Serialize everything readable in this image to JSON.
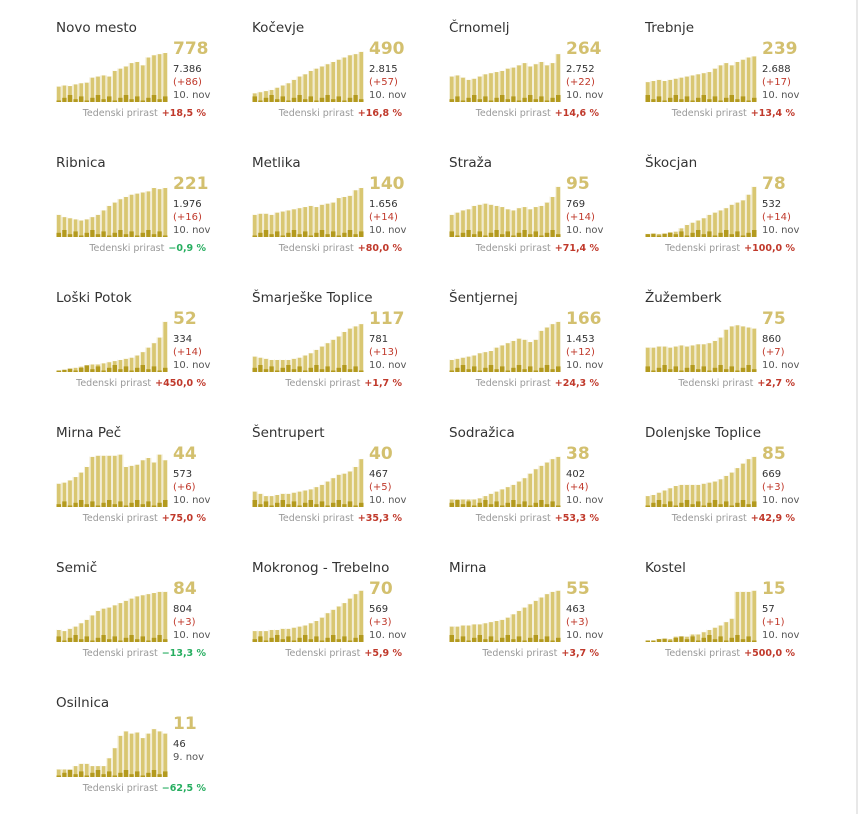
{
  "colors": {
    "bar": "#d9c772",
    "bar_edge": "#c9b452",
    "area": "#d3c06f",
    "new_bar": "#b39a1e",
    "positive": "#c0392b",
    "negative": "#27ae60"
  },
  "labels": {
    "growth_label": "Tedenski prirast"
  },
  "chart_data": [
    {
      "type": "bar",
      "title": "Novo mesto",
      "active": "778",
      "total": "7.386",
      "delta": "(+86)",
      "date": "10. nov",
      "growth": "+18,5 %",
      "growth_sign": "pos",
      "values": [
        28,
        30,
        29,
        32,
        34,
        35,
        44,
        46,
        48,
        46,
        56,
        60,
        64,
        70,
        72,
        66,
        80,
        84,
        86,
        88
      ]
    },
    {
      "type": "bar",
      "title": "Kočevje",
      "active": "490",
      "total": "2.815",
      "delta": "(+57)",
      "date": "10. nov",
      "growth": "+16,8 %",
      "growth_sign": "pos",
      "values": [
        16,
        18,
        20,
        22,
        26,
        30,
        34,
        40,
        46,
        50,
        56,
        60,
        64,
        68,
        72,
        76,
        80,
        84,
        86,
        90
      ]
    },
    {
      "type": "bar",
      "title": "Črnomelj",
      "active": "264",
      "total": "2.752",
      "delta": "(+22)",
      "date": "10. nov",
      "growth": "+14,6 %",
      "growth_sign": "pos",
      "values": [
        46,
        48,
        44,
        40,
        42,
        46,
        50,
        52,
        54,
        56,
        60,
        62,
        66,
        70,
        64,
        68,
        72,
        66,
        70,
        86
      ]
    },
    {
      "type": "bar",
      "title": "Trebnje",
      "active": "239",
      "total": "2.688",
      "delta": "(+17)",
      "date": "10. nov",
      "growth": "+13,4 %",
      "growth_sign": "pos",
      "values": [
        36,
        38,
        40,
        38,
        40,
        42,
        44,
        46,
        48,
        50,
        52,
        54,
        60,
        66,
        70,
        66,
        72,
        76,
        80,
        82
      ]
    },
    {
      "type": "bar",
      "title": "Ribnica",
      "active": "221",
      "total": "1.976",
      "delta": "(+16)",
      "date": "10. nov",
      "growth": "−0,9 %",
      "growth_sign": "neg",
      "values": [
        40,
        36,
        34,
        32,
        30,
        32,
        36,
        40,
        48,
        56,
        62,
        68,
        72,
        76,
        78,
        80,
        82,
        88,
        86,
        88
      ]
    },
    {
      "type": "bar",
      "title": "Metlika",
      "active": "140",
      "total": "1.656",
      "delta": "(+14)",
      "date": "10. nov",
      "growth": "+80,0 %",
      "growth_sign": "pos",
      "values": [
        40,
        42,
        42,
        40,
        44,
        46,
        48,
        50,
        52,
        54,
        56,
        54,
        58,
        60,
        62,
        70,
        72,
        74,
        84,
        88
      ]
    },
    {
      "type": "bar",
      "title": "Straža",
      "active": "95",
      "total": "769",
      "delta": "(+14)",
      "date": "10. nov",
      "growth": "+71,4 %",
      "growth_sign": "pos",
      "values": [
        40,
        44,
        48,
        50,
        56,
        58,
        60,
        58,
        56,
        54,
        50,
        48,
        52,
        54,
        50,
        54,
        56,
        62,
        72,
        90
      ]
    },
    {
      "type": "bar",
      "title": "Škocjan",
      "active": "78",
      "total": "532",
      "delta": "(+14)",
      "date": "10. nov",
      "growth": "+100,0 %",
      "growth_sign": "pos",
      "values": [
        6,
        6,
        6,
        6,
        8,
        10,
        16,
        22,
        26,
        30,
        34,
        40,
        44,
        48,
        52,
        58,
        62,
        66,
        76,
        90
      ]
    },
    {
      "type": "bar",
      "title": "Loški Potok",
      "active": "52",
      "total": "334",
      "delta": "(+14)",
      "date": "10. nov",
      "growth": "+450,0 %",
      "growth_sign": "pos",
      "values": [
        2,
        4,
        6,
        8,
        10,
        12,
        14,
        14,
        16,
        18,
        20,
        22,
        24,
        26,
        30,
        36,
        44,
        52,
        62,
        90
      ]
    },
    {
      "type": "bar",
      "title": "Šmarješke Toplice",
      "active": "117",
      "total": "781",
      "delta": "(+13)",
      "date": "10. nov",
      "growth": "+1,7 %",
      "growth_sign": "pos",
      "values": [
        28,
        26,
        24,
        22,
        22,
        22,
        22,
        24,
        26,
        30,
        34,
        40,
        46,
        52,
        58,
        64,
        72,
        78,
        82,
        86
      ]
    },
    {
      "type": "bar",
      "title": "Šentjernej",
      "active": "166",
      "total": "1.453",
      "delta": "(+12)",
      "date": "10. nov",
      "growth": "+24,3 %",
      "growth_sign": "pos",
      "values": [
        22,
        24,
        26,
        28,
        30,
        34,
        36,
        38,
        44,
        48,
        52,
        56,
        60,
        58,
        54,
        58,
        74,
        80,
        86,
        90
      ]
    },
    {
      "type": "bar",
      "title": "Žužemberk",
      "active": "75",
      "total": "860",
      "delta": "(+7)",
      "date": "10. nov",
      "growth": "+2,7 %",
      "growth_sign": "pos",
      "values": [
        44,
        44,
        46,
        46,
        44,
        46,
        48,
        46,
        48,
        50,
        50,
        52,
        56,
        62,
        76,
        82,
        84,
        82,
        80,
        78
      ]
    },
    {
      "type": "bar",
      "title": "Mirna Peč",
      "active": "44",
      "total": "573",
      "delta": "(+6)",
      "date": "10. nov",
      "growth": "+75,0 %",
      "growth_sign": "pos",
      "values": [
        42,
        44,
        48,
        54,
        62,
        72,
        90,
        92,
        92,
        92,
        92,
        94,
        72,
        74,
        76,
        84,
        88,
        80,
        94,
        84
      ]
    },
    {
      "type": "bar",
      "title": "Šentrupert",
      "active": "40",
      "total": "467",
      "delta": "(+5)",
      "date": "10. nov",
      "growth": "+35,3 %",
      "growth_sign": "pos",
      "values": [
        28,
        24,
        20,
        20,
        22,
        24,
        24,
        26,
        28,
        30,
        32,
        36,
        40,
        46,
        52,
        58,
        60,
        64,
        72,
        86
      ]
    },
    {
      "type": "bar",
      "title": "Sodražica",
      "active": "38",
      "total": "402",
      "delta": "(+4)",
      "date": "10. nov",
      "growth": "+53,3 %",
      "growth_sign": "pos",
      "values": [
        14,
        14,
        14,
        14,
        14,
        16,
        20,
        24,
        28,
        32,
        36,
        40,
        46,
        52,
        60,
        68,
        74,
        80,
        86,
        90
      ]
    },
    {
      "type": "bar",
      "title": "Dolenjske Toplice",
      "active": "85",
      "total": "669",
      "delta": "(+3)",
      "date": "10. nov",
      "growth": "+42,9 %",
      "growth_sign": "pos",
      "values": [
        20,
        22,
        26,
        30,
        34,
        38,
        40,
        40,
        40,
        40,
        42,
        44,
        46,
        50,
        56,
        62,
        70,
        78,
        86,
        90
      ]
    },
    {
      "type": "bar",
      "title": "Semič",
      "active": "84",
      "total": "804",
      "delta": "(+3)",
      "date": "10. nov",
      "growth": "−13,3 %",
      "growth_sign": "neg",
      "values": [
        22,
        20,
        24,
        28,
        34,
        40,
        48,
        56,
        60,
        62,
        66,
        70,
        74,
        78,
        82,
        84,
        86,
        88,
        90,
        90
      ]
    },
    {
      "type": "bar",
      "title": "Mokronog - Trebelno",
      "active": "70",
      "total": "569",
      "delta": "(+3)",
      "date": "10. nov",
      "growth": "+5,9 %",
      "growth_sign": "pos",
      "values": [
        20,
        20,
        20,
        22,
        22,
        24,
        24,
        26,
        28,
        30,
        34,
        38,
        44,
        52,
        58,
        64,
        70,
        78,
        86,
        92
      ]
    },
    {
      "type": "bar",
      "title": "Mirna",
      "active": "55",
      "total": "463",
      "delta": "(+3)",
      "date": "10. nov",
      "growth": "+3,7 %",
      "growth_sign": "pos",
      "values": [
        28,
        28,
        30,
        30,
        32,
        32,
        34,
        36,
        38,
        40,
        44,
        50,
        56,
        62,
        68,
        74,
        80,
        86,
        90,
        92
      ]
    },
    {
      "type": "bar",
      "title": "Kostel",
      "active": "15",
      "total": "57",
      "delta": "(+1)",
      "date": "10. nov",
      "growth": "+500,0 %",
      "growth_sign": "pos",
      "values": [
        0,
        0,
        6,
        6,
        6,
        10,
        10,
        10,
        14,
        14,
        18,
        22,
        26,
        30,
        36,
        42,
        90,
        90,
        90,
        92
      ]
    },
    {
      "type": "bar",
      "title": "Osilnica",
      "active": "11",
      "total": "46",
      "delta": "",
      "date": "9. nov",
      "growth": "−62,5 %",
      "growth_sign": "neg",
      "values": [
        14,
        14,
        14,
        20,
        24,
        24,
        20,
        20,
        20,
        34,
        52,
        74,
        82,
        78,
        80,
        70,
        78,
        86,
        82,
        78
      ]
    }
  ]
}
